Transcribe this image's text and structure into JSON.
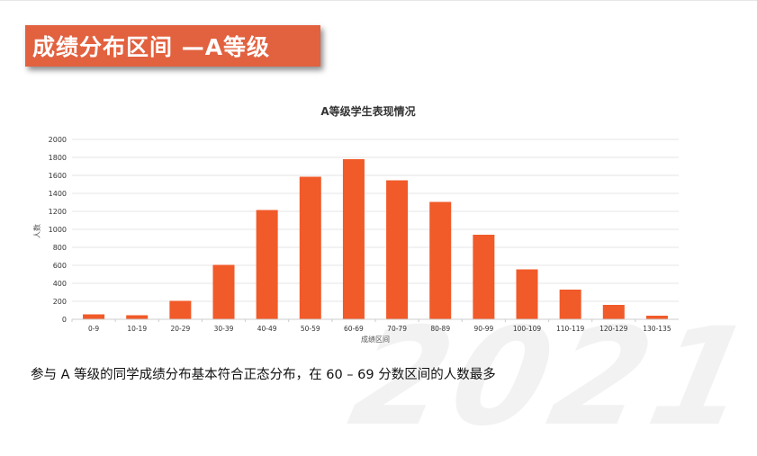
{
  "slide": {
    "title": "成绩分布区间 —A等级",
    "watermark": "2021",
    "caption": "参与 A 等级的同学成绩分布基本符合正态分布，在 60 – 69 分数区间的人数最多"
  },
  "colors": {
    "banner": "#e2613f",
    "bar": "#f15a29",
    "grid": "#e6e6e6"
  },
  "chart_data": {
    "type": "bar",
    "title": "A等级学生表现情况",
    "xlabel": "成绩区间",
    "ylabel": "人数",
    "categories": [
      "0-9",
      "10-19",
      "20-29",
      "30-39",
      "40-49",
      "50-59",
      "60-69",
      "70-79",
      "80-89",
      "90-99",
      "100-109",
      "110-119",
      "120-129",
      "130-135"
    ],
    "values": [
      55,
      45,
      205,
      605,
      1215,
      1585,
      1780,
      1545,
      1305,
      940,
      555,
      330,
      160,
      40
    ],
    "ylim": [
      0,
      2000
    ],
    "yticks": [
      0,
      200,
      400,
      600,
      800,
      1000,
      1200,
      1400,
      1600,
      1800,
      2000
    ],
    "grid": true,
    "legend": "none"
  }
}
